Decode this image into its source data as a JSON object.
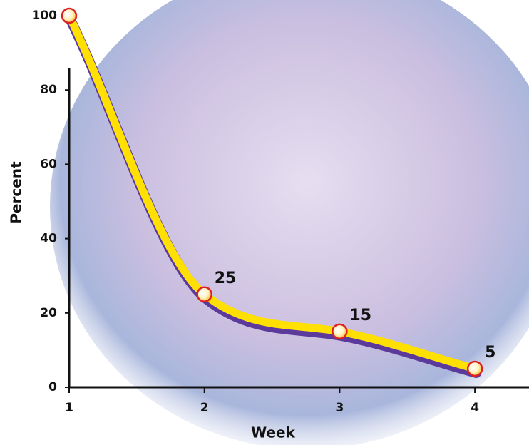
{
  "chart_data": {
    "type": "line",
    "x": [
      1,
      2,
      3,
      4
    ],
    "series": [
      {
        "values": [
          100,
          25,
          15,
          5
        ],
        "color": "#ffe000"
      }
    ],
    "xlabel": "Week",
    "ylabel": "Percent",
    "xlim": [
      1,
      4.4
    ],
    "ylim": [
      0,
      100
    ],
    "xticks": [
      1,
      2,
      3,
      4
    ],
    "yticks": [
      0,
      20,
      40,
      60,
      80,
      100
    ]
  }
}
